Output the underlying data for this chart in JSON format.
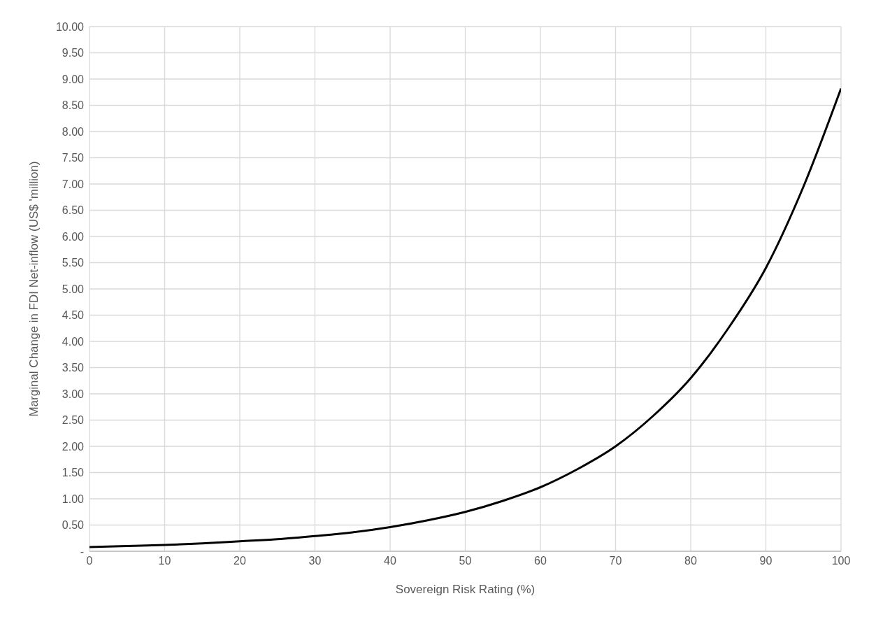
{
  "chart_data": {
    "type": "line",
    "xlabel": "Sovereign Risk Rating (%)",
    "ylabel": "Marginal Change in FDI Net-inflow (US$ 'million)",
    "x": [
      0,
      5,
      10,
      15,
      20,
      25,
      30,
      35,
      40,
      45,
      50,
      55,
      60,
      65,
      70,
      75,
      80,
      85,
      90,
      95,
      100
    ],
    "series": [
      {
        "color": "#000000",
        "values": [
          0.08,
          0.1,
          0.12,
          0.15,
          0.19,
          0.23,
          0.29,
          0.36,
          0.46,
          0.59,
          0.75,
          0.96,
          1.22,
          1.57,
          2.0,
          2.58,
          3.3,
          4.25,
          5.4,
          6.95,
          8.82
        ]
      }
    ],
    "xlim": [
      0,
      100
    ],
    "xticks": [
      0,
      10,
      20,
      30,
      40,
      50,
      60,
      70,
      80,
      90,
      100
    ],
    "ylim": [
      0,
      10
    ],
    "yticks": [
      {
        "value": 0,
        "label": "-"
      },
      {
        "value": 0.5,
        "label": "0.50"
      },
      {
        "value": 1,
        "label": "1.00"
      },
      {
        "value": 1.5,
        "label": "1.50"
      },
      {
        "value": 2,
        "label": "2.00"
      },
      {
        "value": 2.5,
        "label": "2.50"
      },
      {
        "value": 3,
        "label": "3.00"
      },
      {
        "value": 3.5,
        "label": "3.50"
      },
      {
        "value": 4,
        "label": "4.00"
      },
      {
        "value": 4.5,
        "label": "4.50"
      },
      {
        "value": 5,
        "label": "5.00"
      },
      {
        "value": 5.5,
        "label": "5.50"
      },
      {
        "value": 6,
        "label": "6.00"
      },
      {
        "value": 6.5,
        "label": "6.50"
      },
      {
        "value": 7,
        "label": "7.00"
      },
      {
        "value": 7.5,
        "label": "7.50"
      },
      {
        "value": 8,
        "label": "8.00"
      },
      {
        "value": 8.5,
        "label": "8.50"
      },
      {
        "value": 9,
        "label": "9.00"
      },
      {
        "value": 9.5,
        "label": "9.50"
      },
      {
        "value": 10,
        "label": "10.00"
      }
    ],
    "grid": true,
    "marker": "none",
    "line_style": "solid"
  }
}
